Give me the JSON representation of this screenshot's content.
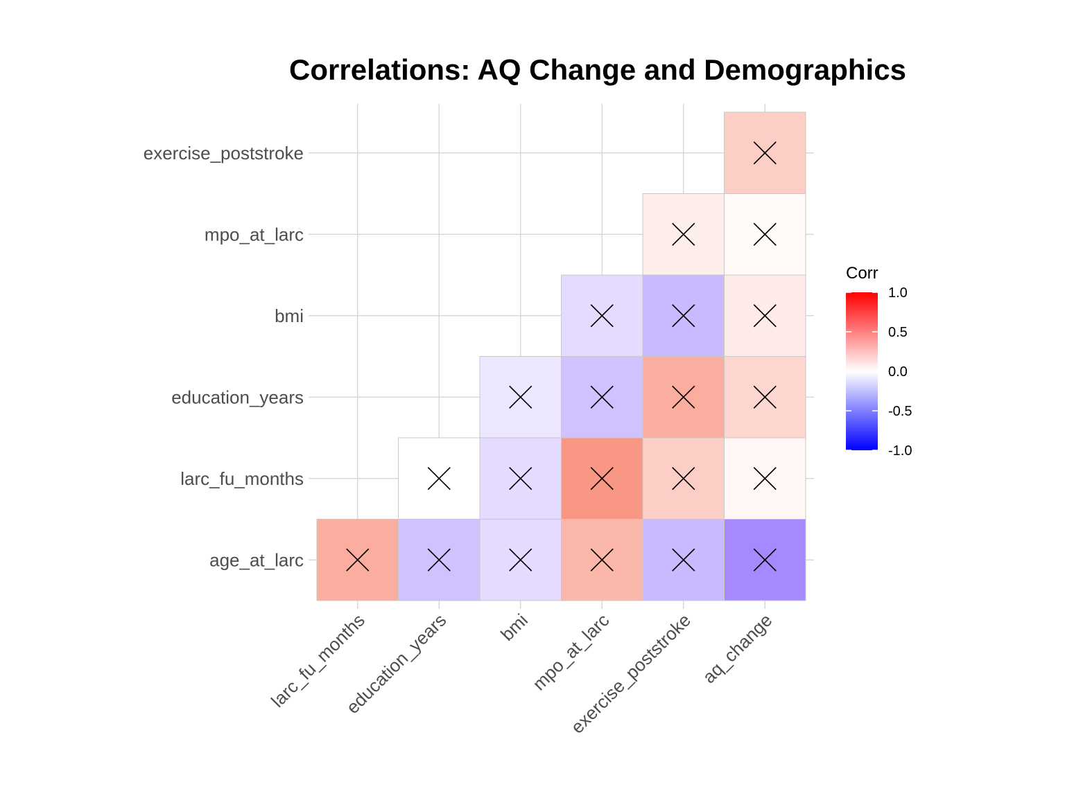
{
  "chart_data": {
    "type": "heatmap",
    "title": "Correlations: AQ Change and Demographics",
    "x_variables": [
      "larc_fu_months",
      "education_years",
      "bmi",
      "mpo_at_larc",
      "exercise_poststroke",
      "aq_change"
    ],
    "y_variables": [
      "age_at_larc",
      "larc_fu_months",
      "education_years",
      "bmi",
      "mpo_at_larc",
      "exercise_poststroke"
    ],
    "cells": [
      {
        "x": "larc_fu_months",
        "y": "age_at_larc",
        "corr": 0.28,
        "insignificant": true
      },
      {
        "x": "education_years",
        "y": "age_at_larc",
        "corr": -0.22,
        "insignificant": true
      },
      {
        "x": "bmi",
        "y": "age_at_larc",
        "corr": -0.13,
        "insignificant": true
      },
      {
        "x": "mpo_at_larc",
        "y": "age_at_larc",
        "corr": 0.25,
        "insignificant": true
      },
      {
        "x": "exercise_poststroke",
        "y": "age_at_larc",
        "corr": -0.25,
        "insignificant": true
      },
      {
        "x": "aq_change",
        "y": "age_at_larc",
        "corr": -0.42,
        "insignificant": true
      },
      {
        "x": "education_years",
        "y": "larc_fu_months",
        "corr": 0.0,
        "insignificant": true
      },
      {
        "x": "bmi",
        "y": "larc_fu_months",
        "corr": -0.13,
        "insignificant": true
      },
      {
        "x": "mpo_at_larc",
        "y": "larc_fu_months",
        "corr": 0.36,
        "insignificant": true
      },
      {
        "x": "exercise_poststroke",
        "y": "larc_fu_months",
        "corr": 0.17,
        "insignificant": true
      },
      {
        "x": "aq_change",
        "y": "larc_fu_months",
        "corr": 0.03,
        "insignificant": true
      },
      {
        "x": "bmi",
        "y": "education_years",
        "corr": -0.09,
        "insignificant": true
      },
      {
        "x": "mpo_at_larc",
        "y": "education_years",
        "corr": -0.22,
        "insignificant": true
      },
      {
        "x": "exercise_poststroke",
        "y": "education_years",
        "corr": 0.28,
        "insignificant": true
      },
      {
        "x": "aq_change",
        "y": "education_years",
        "corr": 0.14,
        "insignificant": true
      },
      {
        "x": "mpo_at_larc",
        "y": "bmi",
        "corr": -0.13,
        "insignificant": true
      },
      {
        "x": "exercise_poststroke",
        "y": "bmi",
        "corr": -0.25,
        "insignificant": true
      },
      {
        "x": "aq_change",
        "y": "bmi",
        "corr": 0.07,
        "insignificant": true
      },
      {
        "x": "exercise_poststroke",
        "y": "mpo_at_larc",
        "corr": 0.06,
        "insignificant": true
      },
      {
        "x": "aq_change",
        "y": "mpo_at_larc",
        "corr": 0.02,
        "insignificant": true
      },
      {
        "x": "aq_change",
        "y": "exercise_poststroke",
        "corr": 0.17,
        "insignificant": true
      }
    ],
    "legend": {
      "title": "Corr",
      "placement": "right",
      "ticks": [
        1.0,
        0.5,
        0.0,
        -0.5,
        -1.0
      ],
      "tick_labels": [
        "1.0",
        "0.5",
        "0.0",
        "-0.5",
        "-1.0"
      ],
      "colors": {
        "high": "#FF0000",
        "mid": "#FFFFFF",
        "low": "#0000FF"
      }
    },
    "grid": true
  }
}
